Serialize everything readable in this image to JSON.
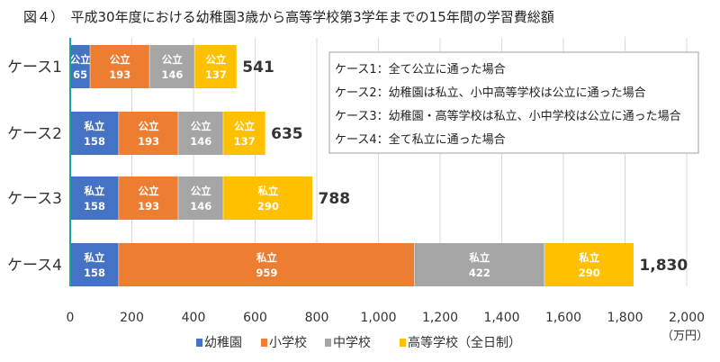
{
  "chart_data": {
    "type": "bar",
    "orientation": "horizontal",
    "stacked": true,
    "title": "図４）　平成30年度における幼稚園3歳から高等学校第3学年までの15年間の学習費総額",
    "categories": [
      "ケース1",
      "ケース2",
      "ケース3",
      "ケース4"
    ],
    "series": [
      {
        "name": "幼稚園",
        "color": "#4472C4",
        "values": [
          65,
          158,
          158,
          158
        ],
        "labels": [
          "公立",
          "私立",
          "私立",
          "私立"
        ]
      },
      {
        "name": "小学校",
        "color": "#ED7D31",
        "values": [
          193,
          193,
          193,
          959
        ],
        "labels": [
          "公立",
          "公立",
          "公立",
          "私立"
        ]
      },
      {
        "name": "中学校",
        "color": "#A5A5A5",
        "values": [
          146,
          146,
          146,
          422
        ],
        "labels": [
          "公立",
          "公立",
          "公立",
          "私立"
        ]
      },
      {
        "name": "高等学校（全日制）",
        "color": "#FFC000",
        "values": [
          137,
          137,
          290,
          290
        ],
        "labels": [
          "公立",
          "公立",
          "私立",
          "私立"
        ]
      }
    ],
    "totals": [
      "541",
      "635",
      "788",
      "1,830"
    ],
    "xlim": [
      0,
      2000
    ],
    "xticks": [
      0,
      200,
      400,
      600,
      800,
      1000,
      1200,
      1400,
      1600,
      1800,
      2000
    ],
    "xtick_labels": [
      "0",
      "200",
      "400",
      "600",
      "800",
      "1,000",
      "1,200",
      "1,400",
      "1,600",
      "1,800",
      "2,000"
    ],
    "unit": "（万円）",
    "grid": true,
    "legend_position": "bottom",
    "notes": [
      "ケース1：全て公立に通った場合",
      "ケース2：幼稚園は私立、小中高等学校は公立に通った場合",
      "ケース3：幼稚園・高等学校は私立、小中学校は公立に通った場合",
      "ケース4：全て私立に通った場合"
    ]
  }
}
